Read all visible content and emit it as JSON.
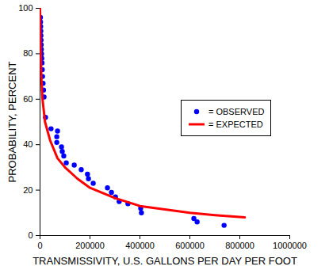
{
  "chart_data": {
    "type": "scatter",
    "x_label": "TRANSMISSIVITY, U.S. GALLONS PER DAY PER FOOT",
    "y_label": "PROBABILITY, PERCENT",
    "xlim": [
      0,
      1000000
    ],
    "xticks": [
      0,
      200000,
      400000,
      600000,
      800000,
      1000000
    ],
    "ylim": [
      0,
      100
    ],
    "yticks": [
      0,
      20,
      40,
      60,
      80,
      100
    ],
    "legend": "right",
    "series": [
      {
        "name": "= OBSERVED",
        "type": "scatter",
        "color": "#0000ff",
        "marker": "circle",
        "x": [
          1500,
          2000,
          2500,
          3000,
          3500,
          4000,
          4500,
          5000,
          6000,
          7000,
          8000,
          9000,
          10000,
          12000,
          14000,
          16000,
          22000,
          44000,
          70000,
          67000,
          67000,
          86000,
          89000,
          95000,
          105000,
          137000,
          165000,
          190000,
          194000,
          213000,
          270000,
          286000,
          302000,
          317000,
          352000,
          403000,
          406000,
          616000,
          629000,
          737000
        ],
        "values": [
          96,
          94,
          92,
          90,
          88,
          86,
          84,
          82,
          80,
          78,
          76,
          73,
          70,
          67,
          64,
          61,
          52,
          47,
          46,
          43.5,
          41,
          39,
          37,
          35,
          32,
          31,
          29,
          27,
          25,
          23,
          21,
          19,
          17,
          15,
          14,
          12,
          10,
          7.5,
          6,
          4.5
        ]
      },
      {
        "name": "= EXPECTED",
        "type": "line",
        "color": "#ff0000",
        "line_style": "solid",
        "x": [
          0,
          2000,
          5000,
          10000,
          20000,
          40000,
          70000,
          100000,
          150000,
          200000,
          300000,
          400000,
          500000,
          600000,
          700000,
          820000
        ],
        "values": [
          100,
          85,
          70,
          60,
          50,
          42,
          34,
          30,
          25,
          21,
          16.5,
          13,
          11.5,
          10,
          9,
          8
        ]
      }
    ]
  }
}
